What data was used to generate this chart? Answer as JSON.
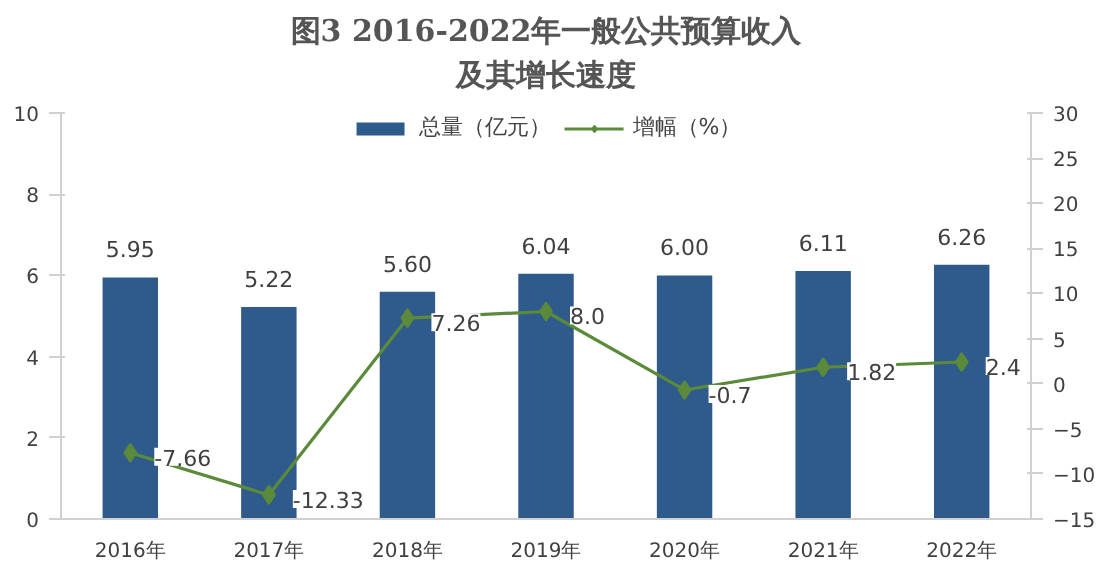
{
  "chart_data": {
    "type": "bar",
    "title": "图3 2016-2022年一般公共预算收入及其增长速度",
    "categories": [
      "2016年",
      "2017年",
      "2018年",
      "2019年",
      "2020年",
      "2021年",
      "2022年"
    ],
    "series": [
      {
        "name": "总量（亿元）",
        "color": "#2f5a8c",
        "values": [
          5.95,
          5.22,
          5.6,
          6.04,
          6.0,
          6.11,
          6.26
        ],
        "value_labels": [
          "5.95",
          "5.22",
          "5.60",
          "6.04",
          "6.00",
          "6.11",
          "6.26"
        ]
      },
      {
        "name": "增幅（%）",
        "type": "line",
        "axis": "y2",
        "color": "#5b8a3a",
        "marker": "diamond",
        "values": [
          -7.66,
          -12.33,
          7.26,
          8.0,
          -0.7,
          1.82,
          2.4
        ],
        "value_labels": [
          "-7.66",
          "-12.33",
          "7.26",
          "8.0",
          "-0.7",
          "1.82",
          "2.4"
        ]
      }
    ],
    "ylim": [
      0,
      10
    ],
    "yticks": [
      0,
      2,
      4,
      6,
      8,
      10
    ],
    "y2lim": [
      -15,
      30
    ],
    "y2ticks": [
      -15,
      -10,
      -5,
      0,
      5,
      10,
      15,
      20,
      25,
      30
    ],
    "grid": false,
    "legend": "top"
  }
}
